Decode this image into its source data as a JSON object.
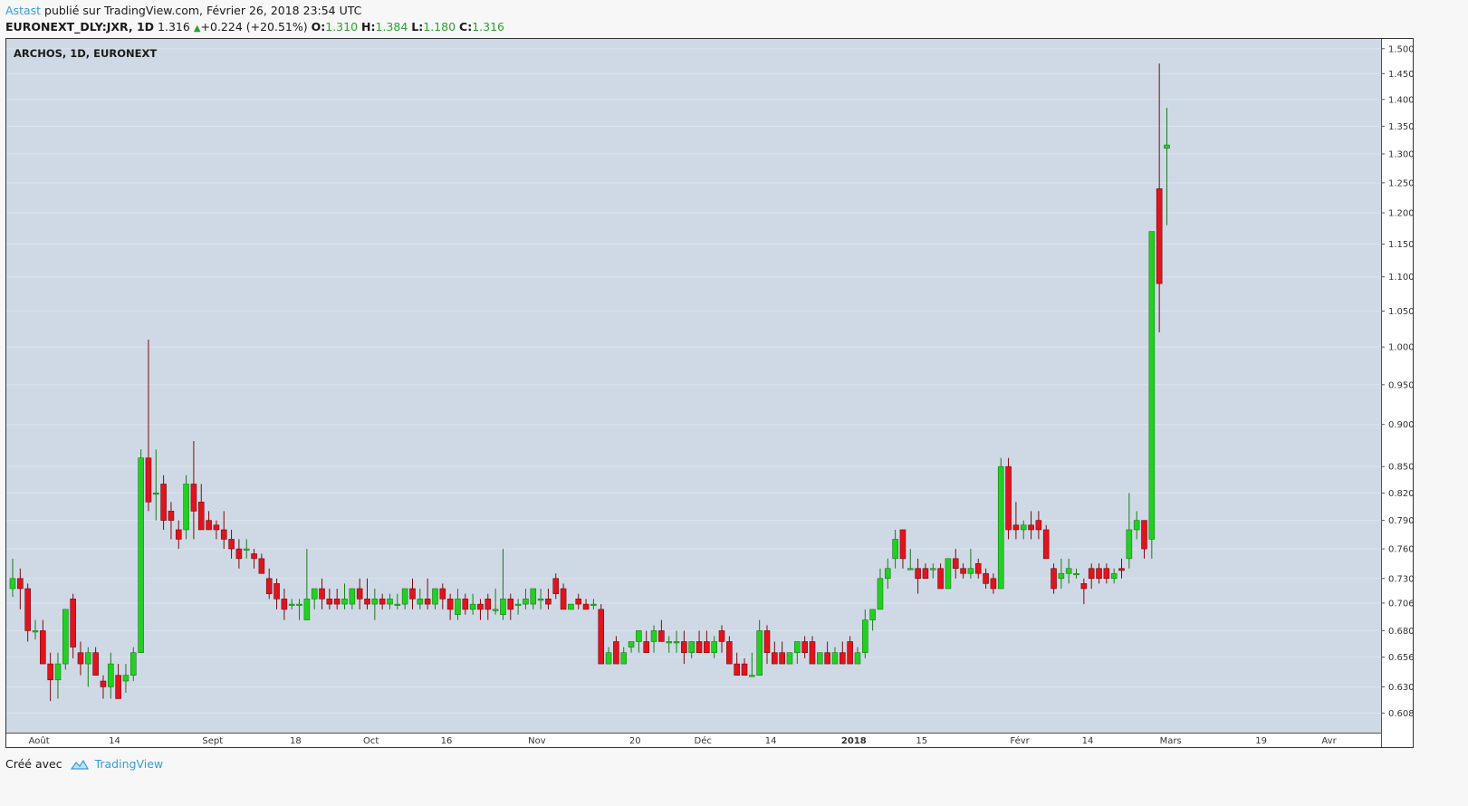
{
  "header": {
    "author": "Astast",
    "published_text": " publié sur TradingView.com, Février 26, 2018 23:54 UTC",
    "symbol": "EURONEXT_DLY:JXR, 1D",
    "last": "1.316",
    "change": "+0.224 (+20.51%)",
    "o_label": "O:",
    "o_value": "1.310",
    "h_label": "H:",
    "h_value": "1.384",
    "l_label": "L:",
    "l_value": "1.180",
    "c_label": "C:",
    "c_value": "1.316"
  },
  "footer": {
    "created_with": "Créé avec",
    "brand": "TradingView"
  },
  "colors": {
    "up": "#22d022",
    "down": "#e0141e",
    "plot_bg": "#cfd9e5",
    "grid": "#dbe3ec"
  },
  "chart_data": {
    "type": "candlestick",
    "title": "ARCHOS, 1D, EURONEXT",
    "y_scale": "log",
    "ylim": [
      0.592,
      1.52
    ],
    "y_ticks": [
      0.608,
      0.63,
      0.656,
      0.68,
      0.706,
      0.73,
      0.76,
      0.79,
      0.82,
      0.85,
      0.9,
      0.95,
      1.0,
      1.05,
      1.1,
      1.15,
      1.2,
      1.25,
      1.3,
      1.35,
      1.4,
      1.45,
      1.5
    ],
    "x_tick_labels": [
      {
        "label": "Août",
        "bar": 3.5
      },
      {
        "label": "14",
        "bar": 13.5
      },
      {
        "label": "Sept",
        "bar": 26.5
      },
      {
        "label": "18",
        "bar": 37.5
      },
      {
        "label": "Oct",
        "bar": 47.5
      },
      {
        "label": "16",
        "bar": 57.5
      },
      {
        "label": "Nov",
        "bar": 69.5
      },
      {
        "label": "20",
        "bar": 82.5
      },
      {
        "label": "Déc",
        "bar": 91.5
      },
      {
        "label": "14",
        "bar": 100.5
      },
      {
        "label": "2018",
        "bar": 111.5
      },
      {
        "label": "15",
        "bar": 120.5
      },
      {
        "label": "Févr",
        "bar": 133.5
      },
      {
        "label": "14",
        "bar": 142.5
      },
      {
        "label": "Mars",
        "bar": 153.5
      },
      {
        "label": "19",
        "bar": 165.5
      },
      {
        "label": "Avr",
        "bar": 174.5
      }
    ],
    "candles": [
      [
        0.72,
        0.75,
        0.712,
        0.73
      ],
      [
        0.73,
        0.74,
        0.7,
        0.72
      ],
      [
        0.72,
        0.725,
        0.67,
        0.68
      ],
      [
        0.68,
        0.69,
        0.672,
        0.68
      ],
      [
        0.68,
        0.69,
        0.655,
        0.65
      ],
      [
        0.65,
        0.66,
        0.618,
        0.636
      ],
      [
        0.636,
        0.66,
        0.62,
        0.65
      ],
      [
        0.65,
        0.7,
        0.645,
        0.7
      ],
      [
        0.71,
        0.715,
        0.655,
        0.665
      ],
      [
        0.66,
        0.67,
        0.64,
        0.65
      ],
      [
        0.65,
        0.665,
        0.63,
        0.66
      ],
      [
        0.66,
        0.665,
        0.64,
        0.64
      ],
      [
        0.635,
        0.64,
        0.62,
        0.63
      ],
      [
        0.63,
        0.66,
        0.62,
        0.65
      ],
      [
        0.64,
        0.65,
        0.62,
        0.62
      ],
      [
        0.635,
        0.65,
        0.625,
        0.64
      ],
      [
        0.64,
        0.665,
        0.635,
        0.66
      ],
      [
        0.66,
        0.87,
        0.66,
        0.86
      ],
      [
        0.86,
        1.01,
        0.8,
        0.81
      ],
      [
        0.82,
        0.87,
        0.79,
        0.82
      ],
      [
        0.83,
        0.84,
        0.78,
        0.79
      ],
      [
        0.8,
        0.81,
        0.77,
        0.79
      ],
      [
        0.78,
        0.79,
        0.76,
        0.77
      ],
      [
        0.78,
        0.84,
        0.77,
        0.83
      ],
      [
        0.83,
        0.88,
        0.77,
        0.8
      ],
      [
        0.81,
        0.83,
        0.78,
        0.78
      ],
      [
        0.79,
        0.8,
        0.78,
        0.78
      ],
      [
        0.785,
        0.79,
        0.77,
        0.78
      ],
      [
        0.78,
        0.8,
        0.76,
        0.77
      ],
      [
        0.77,
        0.78,
        0.75,
        0.76
      ],
      [
        0.76,
        0.77,
        0.74,
        0.75
      ],
      [
        0.76,
        0.77,
        0.75,
        0.76
      ],
      [
        0.755,
        0.76,
        0.74,
        0.75
      ],
      [
        0.75,
        0.755,
        0.735,
        0.735
      ],
      [
        0.73,
        0.74,
        0.71,
        0.715
      ],
      [
        0.725,
        0.73,
        0.7,
        0.71
      ],
      [
        0.71,
        0.72,
        0.69,
        0.7
      ],
      [
        0.705,
        0.71,
        0.7,
        0.705
      ],
      [
        0.705,
        0.71,
        0.69,
        0.705
      ],
      [
        0.69,
        0.76,
        0.69,
        0.71
      ],
      [
        0.71,
        0.72,
        0.7,
        0.72
      ],
      [
        0.72,
        0.73,
        0.7,
        0.71
      ],
      [
        0.71,
        0.72,
        0.7,
        0.705
      ],
      [
        0.71,
        0.72,
        0.7,
        0.705
      ],
      [
        0.705,
        0.725,
        0.7,
        0.71
      ],
      [
        0.705,
        0.72,
        0.7,
        0.72
      ],
      [
        0.72,
        0.73,
        0.7,
        0.71
      ],
      [
        0.71,
        0.73,
        0.7,
        0.705
      ],
      [
        0.705,
        0.72,
        0.69,
        0.71
      ],
      [
        0.71,
        0.715,
        0.7,
        0.705
      ],
      [
        0.705,
        0.715,
        0.7,
        0.71
      ],
      [
        0.705,
        0.715,
        0.7,
        0.705
      ],
      [
        0.705,
        0.72,
        0.7,
        0.72
      ],
      [
        0.72,
        0.73,
        0.7,
        0.71
      ],
      [
        0.705,
        0.72,
        0.7,
        0.71
      ],
      [
        0.71,
        0.73,
        0.7,
        0.705
      ],
      [
        0.705,
        0.72,
        0.7,
        0.72
      ],
      [
        0.72,
        0.725,
        0.7,
        0.71
      ],
      [
        0.71,
        0.715,
        0.69,
        0.7
      ],
      [
        0.695,
        0.72,
        0.69,
        0.71
      ],
      [
        0.71,
        0.715,
        0.695,
        0.7
      ],
      [
        0.7,
        0.715,
        0.695,
        0.705
      ],
      [
        0.705,
        0.71,
        0.69,
        0.7
      ],
      [
        0.71,
        0.715,
        0.69,
        0.7
      ],
      [
        0.7,
        0.72,
        0.695,
        0.7
      ],
      [
        0.695,
        0.76,
        0.69,
        0.71
      ],
      [
        0.71,
        0.715,
        0.69,
        0.7
      ],
      [
        0.705,
        0.71,
        0.695,
        0.705
      ],
      [
        0.705,
        0.72,
        0.7,
        0.71
      ],
      [
        0.705,
        0.72,
        0.7,
        0.72
      ],
      [
        0.71,
        0.72,
        0.7,
        0.71
      ],
      [
        0.71,
        0.72,
        0.7,
        0.705
      ],
      [
        0.73,
        0.735,
        0.71,
        0.715
      ],
      [
        0.72,
        0.725,
        0.7,
        0.7
      ],
      [
        0.7,
        0.705,
        0.7,
        0.705
      ],
      [
        0.71,
        0.715,
        0.7,
        0.705
      ],
      [
        0.705,
        0.71,
        0.7,
        0.7
      ],
      [
        0.705,
        0.71,
        0.7,
        0.705
      ],
      [
        0.7,
        0.705,
        0.65,
        0.65
      ],
      [
        0.65,
        0.665,
        0.65,
        0.66
      ],
      [
        0.67,
        0.675,
        0.65,
        0.65
      ],
      [
        0.65,
        0.665,
        0.65,
        0.66
      ],
      [
        0.665,
        0.67,
        0.66,
        0.67
      ],
      [
        0.67,
        0.68,
        0.66,
        0.68
      ],
      [
        0.67,
        0.68,
        0.66,
        0.66
      ],
      [
        0.67,
        0.685,
        0.66,
        0.68
      ],
      [
        0.68,
        0.69,
        0.67,
        0.67
      ],
      [
        0.67,
        0.675,
        0.66,
        0.67
      ],
      [
        0.67,
        0.68,
        0.66,
        0.67
      ],
      [
        0.67,
        0.68,
        0.65,
        0.66
      ],
      [
        0.66,
        0.67,
        0.655,
        0.67
      ],
      [
        0.67,
        0.68,
        0.66,
        0.66
      ],
      [
        0.67,
        0.68,
        0.66,
        0.66
      ],
      [
        0.66,
        0.675,
        0.655,
        0.67
      ],
      [
        0.68,
        0.685,
        0.66,
        0.67
      ],
      [
        0.67,
        0.675,
        0.65,
        0.65
      ],
      [
        0.65,
        0.66,
        0.64,
        0.64
      ],
      [
        0.65,
        0.655,
        0.64,
        0.64
      ],
      [
        0.64,
        0.66,
        0.64,
        0.64
      ],
      [
        0.64,
        0.69,
        0.64,
        0.68
      ],
      [
        0.68,
        0.685,
        0.65,
        0.66
      ],
      [
        0.66,
        0.67,
        0.65,
        0.65
      ],
      [
        0.66,
        0.67,
        0.65,
        0.65
      ],
      [
        0.65,
        0.66,
        0.65,
        0.66
      ],
      [
        0.66,
        0.67,
        0.65,
        0.67
      ],
      [
        0.67,
        0.675,
        0.655,
        0.66
      ],
      [
        0.67,
        0.675,
        0.65,
        0.65
      ],
      [
        0.65,
        0.66,
        0.65,
        0.66
      ],
      [
        0.66,
        0.67,
        0.65,
        0.65
      ],
      [
        0.65,
        0.665,
        0.65,
        0.66
      ],
      [
        0.66,
        0.67,
        0.65,
        0.65
      ],
      [
        0.67,
        0.675,
        0.65,
        0.65
      ],
      [
        0.65,
        0.665,
        0.65,
        0.66
      ],
      [
        0.66,
        0.7,
        0.655,
        0.69
      ],
      [
        0.69,
        0.7,
        0.68,
        0.7
      ],
      [
        0.7,
        0.74,
        0.7,
        0.73
      ],
      [
        0.73,
        0.75,
        0.72,
        0.74
      ],
      [
        0.75,
        0.78,
        0.74,
        0.77
      ],
      [
        0.78,
        0.78,
        0.74,
        0.75
      ],
      [
        0.74,
        0.76,
        0.74,
        0.74
      ],
      [
        0.74,
        0.75,
        0.715,
        0.73
      ],
      [
        0.74,
        0.745,
        0.73,
        0.73
      ],
      [
        0.74,
        0.745,
        0.73,
        0.74
      ],
      [
        0.74,
        0.745,
        0.72,
        0.72
      ],
      [
        0.72,
        0.75,
        0.72,
        0.75
      ],
      [
        0.75,
        0.76,
        0.73,
        0.74
      ],
      [
        0.74,
        0.745,
        0.73,
        0.735
      ],
      [
        0.735,
        0.76,
        0.73,
        0.74
      ],
      [
        0.745,
        0.75,
        0.73,
        0.735
      ],
      [
        0.735,
        0.74,
        0.72,
        0.725
      ],
      [
        0.73,
        0.735,
        0.715,
        0.72
      ],
      [
        0.72,
        0.86,
        0.72,
        0.85
      ],
      [
        0.85,
        0.86,
        0.77,
        0.78
      ],
      [
        0.785,
        0.81,
        0.77,
        0.78
      ],
      [
        0.78,
        0.79,
        0.77,
        0.785
      ],
      [
        0.785,
        0.8,
        0.77,
        0.78
      ],
      [
        0.79,
        0.8,
        0.77,
        0.78
      ],
      [
        0.78,
        0.785,
        0.75,
        0.75
      ],
      [
        0.74,
        0.745,
        0.715,
        0.72
      ],
      [
        0.73,
        0.75,
        0.72,
        0.735
      ],
      [
        0.735,
        0.75,
        0.725,
        0.74
      ],
      [
        0.735,
        0.74,
        0.73,
        0.735
      ],
      [
        0.725,
        0.73,
        0.705,
        0.72
      ],
      [
        0.74,
        0.745,
        0.72,
        0.73
      ],
      [
        0.74,
        0.745,
        0.725,
        0.73
      ],
      [
        0.74,
        0.745,
        0.725,
        0.73
      ],
      [
        0.73,
        0.74,
        0.725,
        0.735
      ],
      [
        0.74,
        0.75,
        0.73,
        0.738
      ],
      [
        0.75,
        0.82,
        0.74,
        0.78
      ],
      [
        0.78,
        0.8,
        0.77,
        0.79
      ],
      [
        0.79,
        0.79,
        0.75,
        0.76
      ],
      [
        0.77,
        1.17,
        0.75,
        1.17
      ],
      [
        1.24,
        1.47,
        1.02,
        1.09
      ],
      [
        1.31,
        1.384,
        1.18,
        1.316
      ]
    ]
  }
}
